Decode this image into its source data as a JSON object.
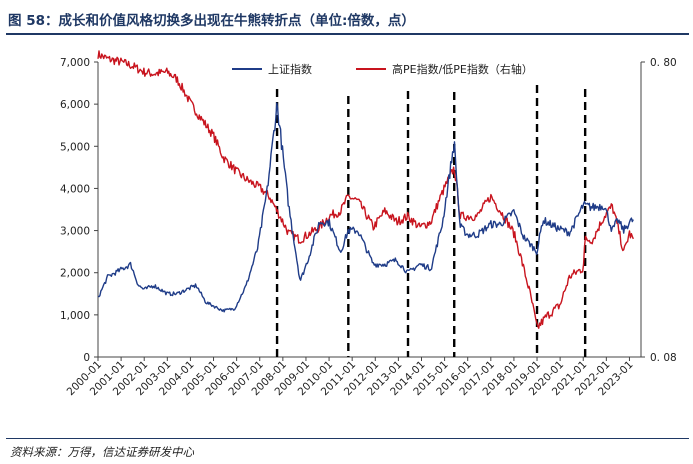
{
  "title": "图 58：成长和价值风格切换多出现在牛熊转折点（单位:倍数，点）",
  "source": "资料来源：万得，信达证券研发中心",
  "chart_data": {
    "type": "line",
    "legend": [
      "上证指数",
      "高PE指数/低PE指数（右轴）"
    ],
    "legend_position": "top",
    "colors": {
      "上证指数": "#1f3c88",
      "高PE指数/低PE指数（右轴）": "#c8141e",
      "markers": "#000000"
    },
    "left_axis": {
      "ylim": [
        0,
        7000
      ],
      "ticks": [
        "0",
        "1,000",
        "2,000",
        "3,000",
        "4,000",
        "5,000",
        "6,000",
        "7,000"
      ]
    },
    "right_axis": {
      "ylim": [
        0.08,
        0.8
      ],
      "scale": "log",
      "ticks": [
        "0.08",
        "0.80"
      ]
    },
    "x_ticks": [
      "2000-01",
      "2001-01",
      "2002-01",
      "2003-01",
      "2004-01",
      "2005-01",
      "2006-01",
      "2007-01",
      "2008-01",
      "2009-01",
      "2010-01",
      "2011-01",
      "2012-01",
      "2013-01",
      "2014-01",
      "2015-01",
      "2016-01",
      "2017-01",
      "2018-01",
      "2019-01",
      "2020-01",
      "2021-01",
      "2022-01",
      "2023-01"
    ],
    "turning_points": [
      "2007-10",
      "2010-11",
      "2013-06",
      "2015-06",
      "2019-01",
      "2021-02"
    ],
    "series": [
      {
        "name": "上证指数",
        "x": [
          "2000-01",
          "2000-06",
          "2001-06",
          "2001-10",
          "2002-01",
          "2002-06",
          "2003-01",
          "2003-06",
          "2004-04",
          "2004-09",
          "2005-06",
          "2005-12",
          "2006-06",
          "2006-12",
          "2007-05",
          "2007-10",
          "2008-04",
          "2008-10",
          "2009-02",
          "2009-08",
          "2010-01",
          "2010-07",
          "2010-11",
          "2011-04",
          "2011-12",
          "2012-06",
          "2012-12",
          "2013-06",
          "2013-12",
          "2014-06",
          "2014-12",
          "2015-06",
          "2015-09",
          "2016-01",
          "2016-06",
          "2017-01",
          "2017-06",
          "2018-01",
          "2018-06",
          "2019-01",
          "2019-04",
          "2019-12",
          "2020-06",
          "2021-01",
          "2021-06",
          "2021-12",
          "2022-04",
          "2022-07",
          "2022-10",
          "2023-01",
          "2023-03"
        ],
        "values": [
          1400,
          1900,
          2200,
          1700,
          1600,
          1700,
          1500,
          1500,
          1700,
          1300,
          1100,
          1150,
          1700,
          2600,
          4000,
          6000,
          3600,
          1800,
          2300,
          3200,
          3200,
          2500,
          3000,
          3000,
          2200,
          2200,
          2300,
          2000,
          2200,
          2100,
          3200,
          5100,
          3100,
          2900,
          2900,
          3150,
          3150,
          3450,
          2850,
          2500,
          3250,
          3050,
          2950,
          3600,
          3550,
          3600,
          3000,
          3250,
          3000,
          3200,
          3250
        ]
      },
      {
        "name": "高PE指数/低PE指数（右轴）",
        "x": [
          "2000-01",
          "2000-06",
          "2001-01",
          "2001-06",
          "2002-01",
          "2002-06",
          "2003-01",
          "2003-06",
          "2004-01",
          "2004-06",
          "2005-01",
          "2005-06",
          "2006-01",
          "2006-06",
          "2007-01",
          "2007-06",
          "2007-10",
          "2008-04",
          "2008-10",
          "2009-03",
          "2009-08",
          "2010-01",
          "2010-07",
          "2010-11",
          "2011-04",
          "2011-12",
          "2012-06",
          "2012-12",
          "2013-06",
          "2013-12",
          "2014-06",
          "2014-12",
          "2015-06",
          "2015-09",
          "2016-01",
          "2016-06",
          "2017-01",
          "2017-06",
          "2018-01",
          "2018-06",
          "2019-01",
          "2019-06",
          "2020-01",
          "2020-06",
          "2021-01",
          "2021-02",
          "2021-06",
          "2021-12",
          "2022-04",
          "2022-07",
          "2022-10",
          "2023-01",
          "2023-03"
        ],
        "values": [
          0.85,
          0.82,
          0.8,
          0.78,
          0.74,
          0.73,
          0.74,
          0.7,
          0.58,
          0.52,
          0.45,
          0.38,
          0.34,
          0.32,
          0.3,
          0.28,
          0.25,
          0.21,
          0.2,
          0.21,
          0.22,
          0.24,
          0.25,
          0.28,
          0.27,
          0.22,
          0.25,
          0.23,
          0.24,
          0.22,
          0.23,
          0.29,
          0.35,
          0.24,
          0.24,
          0.24,
          0.28,
          0.25,
          0.21,
          0.16,
          0.1,
          0.11,
          0.12,
          0.15,
          0.16,
          0.2,
          0.2,
          0.24,
          0.26,
          0.22,
          0.18,
          0.21,
          0.2
        ]
      }
    ]
  }
}
